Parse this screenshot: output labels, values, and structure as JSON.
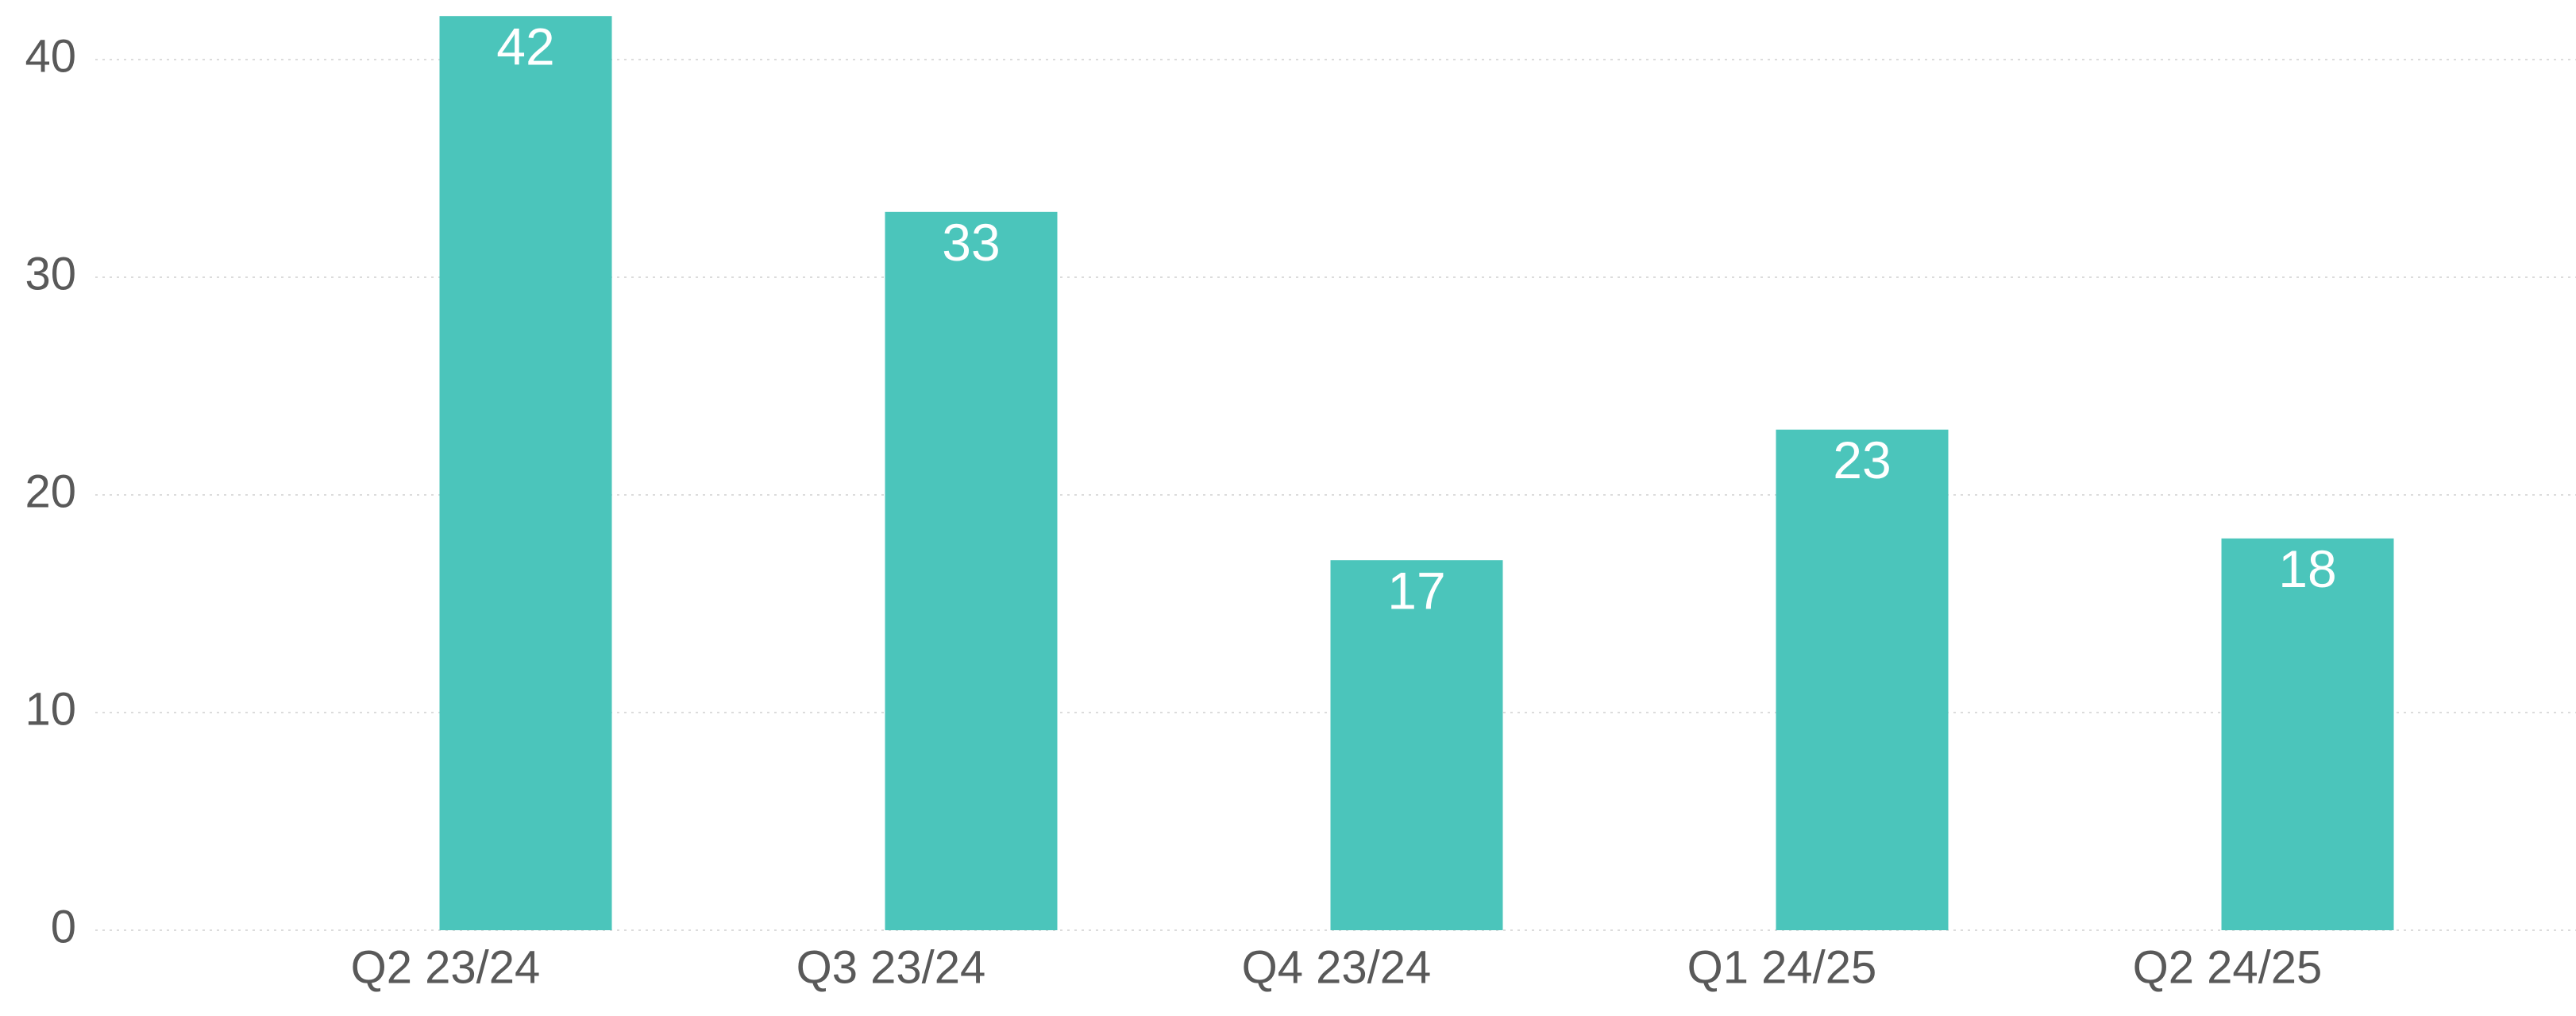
{
  "chart_data": {
    "type": "bar",
    "categories": [
      "Q2 23/24",
      "Q3 23/24",
      "Q4 23/24",
      "Q1 24/25",
      "Q2 24/25"
    ],
    "values": [
      42,
      33,
      17,
      23,
      18
    ],
    "color": "#4bc5bb",
    "ylim": [
      0,
      42
    ],
    "yticks": [
      0,
      10,
      20,
      30,
      40
    ],
    "grid": true,
    "data_labels": true
  }
}
